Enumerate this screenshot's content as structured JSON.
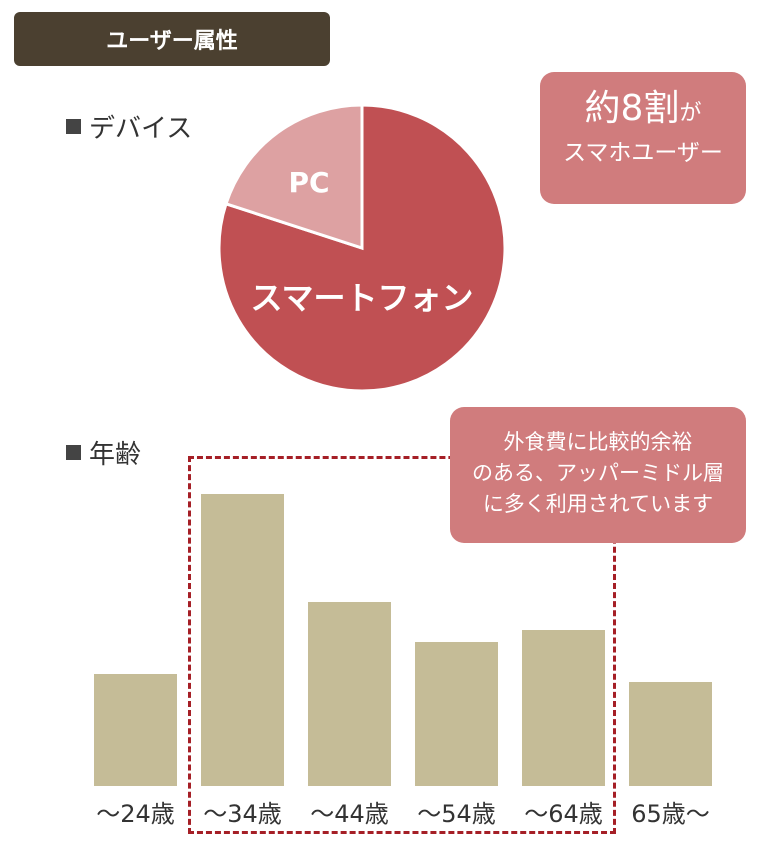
{
  "header": {
    "title": "ユーザー属性"
  },
  "device_section": {
    "label": "デバイス"
  },
  "age_section": {
    "label": "年齢"
  },
  "callout_smartphone": {
    "main": "約8割",
    "suffix": "が",
    "sub": "スマホユーザー"
  },
  "callout_target": {
    "lines": [
      "外食費に比較的余裕",
      "のある、アッパーミドル層",
      "に多く利用されています"
    ]
  },
  "colors": {
    "banner": "#4b4030",
    "pie_smartphone": "#c05053",
    "pie_pc": "#dda1a2",
    "callout": "#d07c7d",
    "bar": "#c5bc97",
    "highlight_dash": "#a51f26"
  },
  "chart_data": [
    {
      "type": "pie",
      "title": "",
      "slices": [
        {
          "label": "スマートフォン",
          "value": 80,
          "color": "#c05053"
        },
        {
          "label": "PC",
          "value": 20,
          "color": "#dda1a2"
        }
      ]
    },
    {
      "type": "bar",
      "title": "",
      "categories": [
        "～24歳",
        "～34歳",
        "～44歳",
        "～54歳",
        "～64歳",
        "65歳～"
      ],
      "values": [
        28,
        73,
        46,
        36,
        39,
        26
      ],
      "ylim": [
        0,
        80
      ],
      "grid": false,
      "highlighted_categories": [
        "～34歳",
        "～44歳",
        "～54歳",
        "～64歳"
      ]
    }
  ]
}
